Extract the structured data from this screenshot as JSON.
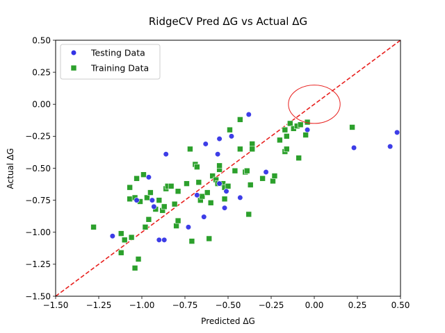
{
  "chart_data": {
    "type": "scatter",
    "title": "RidgeCV Pred ΔG vs Actual ΔG",
    "xlabel": "Predicted ΔG",
    "ylabel": "Actual ΔG",
    "xlim": [
      -1.5,
      0.5
    ],
    "ylim": [
      -1.5,
      0.5
    ],
    "xticks": [
      -1.5,
      -1.25,
      -1.0,
      -0.75,
      -0.5,
      -0.25,
      0.0,
      0.25,
      0.5
    ],
    "yticks": [
      -1.5,
      -1.25,
      -1.0,
      -0.75,
      -0.5,
      -0.25,
      0.0,
      0.25,
      0.5
    ],
    "xtick_labels": [
      "−1.50",
      "−1.25",
      "−1.00",
      "−0.75",
      "−0.50",
      "−0.25",
      "0.00",
      "0.25",
      "0.50"
    ],
    "ytick_labels": [
      "−1.50",
      "−1.25",
      "−1.00",
      "−0.75",
      "−0.50",
      "−0.25",
      "0.00",
      "0.25",
      "0.50"
    ],
    "grid": false,
    "legend_position": "top-left",
    "reference_line": {
      "style": "dashed",
      "color": "#e8201e",
      "points": [
        [
          -1.5,
          -1.5
        ],
        [
          0.5,
          0.5
        ]
      ]
    },
    "annotation": {
      "shape": "ellipse",
      "color": "#e8201e",
      "center": [
        0.0,
        0.0
      ],
      "width": 0.3,
      "height": 0.3
    },
    "series": [
      {
        "name": "Testing Data",
        "marker": "circle",
        "color": "#3333e6",
        "points": [
          [
            -1.17,
            -1.03
          ],
          [
            -1.03,
            -0.75
          ],
          [
            -0.96,
            -0.57
          ],
          [
            -0.94,
            -0.75
          ],
          [
            -0.93,
            -0.8
          ],
          [
            -0.9,
            -1.06
          ],
          [
            -0.87,
            -1.06
          ],
          [
            -0.86,
            -0.39
          ],
          [
            -0.73,
            -0.96
          ],
          [
            -0.68,
            -0.71
          ],
          [
            -0.64,
            -0.88
          ],
          [
            -0.63,
            -0.31
          ],
          [
            -0.56,
            -0.39
          ],
          [
            -0.55,
            -0.27
          ],
          [
            -0.55,
            -0.62
          ],
          [
            -0.52,
            -0.81
          ],
          [
            -0.51,
            -0.68
          ],
          [
            -0.48,
            -0.25
          ],
          [
            -0.43,
            -0.73
          ],
          [
            -0.38,
            -0.08
          ],
          [
            -0.28,
            -0.53
          ],
          [
            -0.04,
            -0.2
          ],
          [
            0.23,
            -0.34
          ],
          [
            0.44,
            -0.33
          ],
          [
            0.48,
            -0.22
          ]
        ]
      },
      {
        "name": "Training Data",
        "marker": "square",
        "color": "#2ca02c",
        "points": [
          [
            -1.28,
            -0.96
          ],
          [
            -1.12,
            -1.01
          ],
          [
            -1.12,
            -1.16
          ],
          [
            -1.1,
            -1.06
          ],
          [
            -1.07,
            -0.74
          ],
          [
            -1.07,
            -0.65
          ],
          [
            -1.06,
            -1.04
          ],
          [
            -1.04,
            -0.73
          ],
          [
            -1.04,
            -1.28
          ],
          [
            -1.03,
            -0.58
          ],
          [
            -1.02,
            -1.21
          ],
          [
            -1.01,
            -0.76
          ],
          [
            -0.99,
            -0.55
          ],
          [
            -0.98,
            -0.96
          ],
          [
            -0.97,
            -0.73
          ],
          [
            -0.96,
            -0.9
          ],
          [
            -0.95,
            -0.69
          ],
          [
            -0.92,
            -0.82
          ],
          [
            -0.9,
            -0.75
          ],
          [
            -0.88,
            -0.83
          ],
          [
            -0.87,
            -0.8
          ],
          [
            -0.86,
            -0.66
          ],
          [
            -0.85,
            -0.64
          ],
          [
            -0.83,
            -0.64
          ],
          [
            -0.81,
            -0.78
          ],
          [
            -0.8,
            -0.95
          ],
          [
            -0.79,
            -0.91
          ],
          [
            -0.79,
            -0.68
          ],
          [
            -0.74,
            -0.62
          ],
          [
            -0.72,
            -0.35
          ],
          [
            -0.71,
            -1.07
          ],
          [
            -0.69,
            -0.47
          ],
          [
            -0.68,
            -0.49
          ],
          [
            -0.67,
            -0.61
          ],
          [
            -0.66,
            -0.75
          ],
          [
            -0.65,
            -0.72
          ],
          [
            -0.62,
            -0.69
          ],
          [
            -0.61,
            -1.05
          ],
          [
            -0.6,
            -0.77
          ],
          [
            -0.59,
            -0.56
          ],
          [
            -0.57,
            -0.59
          ],
          [
            -0.56,
            -0.62
          ],
          [
            -0.55,
            -0.51
          ],
          [
            -0.55,
            -0.48
          ],
          [
            -0.53,
            -0.62
          ],
          [
            -0.52,
            -0.65
          ],
          [
            -0.52,
            -0.74
          ],
          [
            -0.5,
            -0.64
          ],
          [
            -0.49,
            -0.2
          ],
          [
            -0.46,
            -0.52
          ],
          [
            -0.43,
            -0.12
          ],
          [
            -0.43,
            -0.35
          ],
          [
            -0.4,
            -0.53
          ],
          [
            -0.39,
            -0.52
          ],
          [
            -0.38,
            -0.86
          ],
          [
            -0.37,
            -0.63
          ],
          [
            -0.36,
            -0.31
          ],
          [
            -0.36,
            -0.35
          ],
          [
            -0.3,
            -0.58
          ],
          [
            -0.24,
            -0.6
          ],
          [
            -0.23,
            -0.56
          ],
          [
            -0.2,
            -0.28
          ],
          [
            -0.17,
            -0.2
          ],
          [
            -0.17,
            -0.37
          ],
          [
            -0.16,
            -0.35
          ],
          [
            -0.16,
            -0.25
          ],
          [
            -0.14,
            -0.15
          ],
          [
            -0.12,
            -0.19
          ],
          [
            -0.1,
            -0.17
          ],
          [
            -0.09,
            -0.42
          ],
          [
            -0.08,
            -0.16
          ],
          [
            -0.05,
            -0.24
          ],
          [
            -0.04,
            -0.14
          ],
          [
            0.22,
            -0.18
          ]
        ]
      }
    ]
  }
}
